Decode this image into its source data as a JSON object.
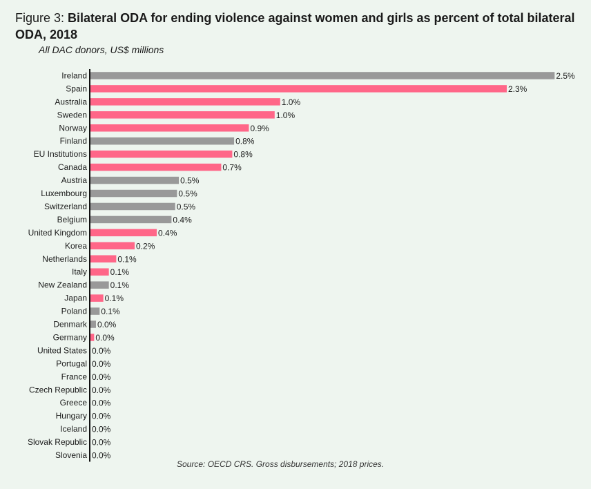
{
  "header": {
    "prefix": "Figure 3: ",
    "title": "Bilateral ODA for ending violence against women and girls as percent of total bilateral ODA, 2018",
    "subtitle": "All DAC donors, US$ millions"
  },
  "footer": {
    "source": "Source: OECD CRS. Gross disbursements; 2018 prices."
  },
  "colors": {
    "gray": "#999999",
    "pink": "#ff6688",
    "axis": "#111111"
  },
  "chart_data": {
    "type": "bar",
    "orientation": "horizontal",
    "value_suffix": "%",
    "xlim": [
      0,
      2.5
    ],
    "grid": false,
    "categories": [
      "Ireland",
      "Spain",
      "Australia",
      "Sweden",
      "Norway",
      "Finland",
      "EU Institutions",
      "Canada",
      "Austria",
      "Luxembourg",
      "Switzerland",
      "Belgium",
      "United Kingdom",
      "Korea",
      "Netherlands",
      "Italy",
      "New Zealand",
      "Japan",
      "Poland",
      "Denmark",
      "Germany",
      "United States",
      "Portugal",
      "France",
      "Czech Republic",
      "Greece",
      "Hungary",
      "Iceland",
      "Slovak Republic",
      "Slovenia"
    ],
    "values": [
      2.5,
      2.3,
      1.0,
      1.0,
      0.9,
      0.8,
      0.8,
      0.7,
      0.5,
      0.5,
      0.5,
      0.4,
      0.4,
      0.2,
      0.1,
      0.1,
      0.1,
      0.1,
      0.1,
      0.0,
      0.0,
      0.0,
      0.0,
      0.0,
      0.0,
      0.0,
      0.0,
      0.0,
      0.0,
      0.0
    ],
    "bar_values": [
      2.52,
      2.26,
      1.03,
      1.0,
      0.86,
      0.78,
      0.77,
      0.71,
      0.48,
      0.47,
      0.46,
      0.44,
      0.36,
      0.24,
      0.14,
      0.1,
      0.1,
      0.07,
      0.05,
      0.03,
      0.02,
      0,
      0,
      0,
      0,
      0,
      0,
      0,
      0,
      0
    ],
    "labels": [
      "2.5%",
      "2.3%",
      "1.0%",
      "1.0%",
      "0.9%",
      "0.8%",
      "0.8%",
      "0.7%",
      "0.5%",
      "0.5%",
      "0.5%",
      "0.4%",
      "0.4%",
      "0.2%",
      "0.1%",
      "0.1%",
      "0.1%",
      "0.1%",
      "0.1%",
      "0.0%",
      "0.0%",
      "0.0%",
      "0.0%",
      "0.0%",
      "0.0%",
      "0.0%",
      "0.0%",
      "0.0%",
      "0.0%",
      "0.0%"
    ],
    "bar_colors": [
      "gray",
      "pink",
      "pink",
      "pink",
      "pink",
      "gray",
      "pink",
      "pink",
      "gray",
      "gray",
      "gray",
      "gray",
      "pink",
      "pink",
      "pink",
      "pink",
      "gray",
      "pink",
      "gray",
      "gray",
      "pink",
      "gray",
      "gray",
      "gray",
      "gray",
      "gray",
      "gray",
      "gray",
      "gray",
      "gray"
    ]
  }
}
